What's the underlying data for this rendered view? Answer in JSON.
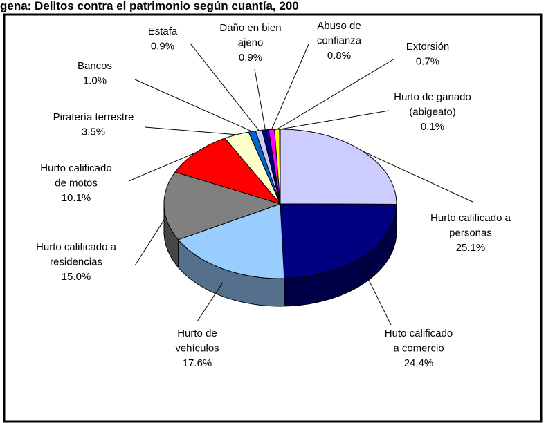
{
  "chart_data": {
    "type": "pie3d",
    "title": "gena: Delitos contra el patrimonio según cuantía, 200",
    "categories": [
      [
        "Hurto calificado a",
        "personas"
      ],
      [
        "Huto calificado",
        "a comercio"
      ],
      [
        "Hurto de",
        "vehículos"
      ],
      [
        "Hurto calificado a",
        "residencias"
      ],
      [
        "Hurto calificado",
        "de motos"
      ],
      [
        "Piratería terrestre"
      ],
      [
        "Bancos"
      ],
      [
        "Estafa"
      ],
      [
        "Daño en bien",
        "ajeno"
      ],
      [
        "Abuso de",
        "confianza"
      ],
      [
        "Extorsión"
      ],
      [
        "Hurto de ganado",
        "(abigeato)"
      ]
    ],
    "values": [
      25.1,
      24.4,
      17.6,
      15.0,
      10.1,
      3.5,
      1.0,
      0.9,
      0.9,
      0.8,
      0.7,
      0.1
    ],
    "value_labels": [
      "25.1%",
      "24.4%",
      "17.6%",
      "15.0%",
      "10.1%",
      "3.5%",
      "1.0%",
      "0.9%",
      "0.9%",
      "0.8%",
      "0.7%",
      "0.1%"
    ],
    "colors": [
      "#ccccff",
      "#000080",
      "#99ccff",
      "#808080",
      "#ff0000",
      "#ffffcc",
      "#0066cc",
      "#ccccff",
      "#000080",
      "#ff00ff",
      "#ffff00",
      "#00ffff"
    ]
  }
}
